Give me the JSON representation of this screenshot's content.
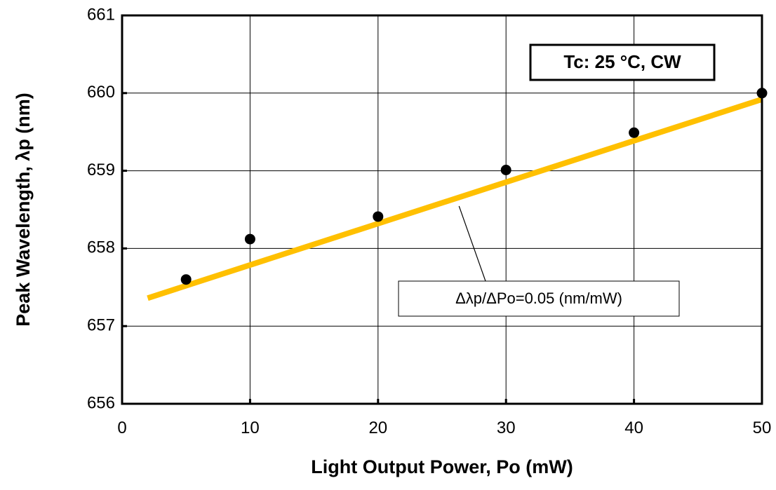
{
  "chart_data": {
    "type": "scatter",
    "title": "",
    "xlabel": "Light Output Power, Po (mW)",
    "ylabel": "Peak Wavelength, λp (nm)",
    "xlim": [
      0,
      50
    ],
    "ylim": [
      656,
      661
    ],
    "xticks": [
      0,
      10,
      20,
      30,
      40,
      50
    ],
    "yticks": [
      656,
      657,
      658,
      659,
      660,
      661
    ],
    "grid": true,
    "series": [
      {
        "marker": "circle",
        "color": "#000000",
        "points": [
          {
            "x": 5,
            "y": 657.6
          },
          {
            "x": 10,
            "y": 658.12
          },
          {
            "x": 20,
            "y": 658.41
          },
          {
            "x": 30,
            "y": 659.01
          },
          {
            "x": 40,
            "y": 659.49
          },
          {
            "x": 50,
            "y": 660.0
          }
        ]
      }
    ],
    "fit_line": {
      "color": "#FFC000",
      "x": [
        2,
        50
      ],
      "y": [
        657.36,
        659.92
      ]
    },
    "condition_box": "Tc: 25 °C, CW",
    "annotation": {
      "text": "Δλp/ΔPo=0.05 (nm/mW)",
      "points_to": {
        "x": 26,
        "y": 658.6
      }
    }
  }
}
